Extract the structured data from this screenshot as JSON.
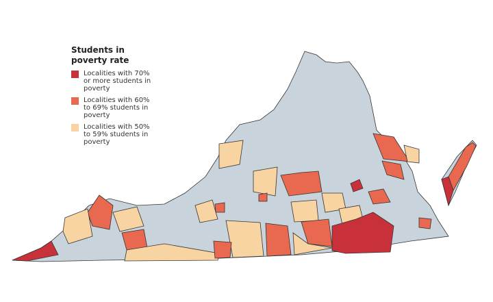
{
  "legend": {
    "title": "Students in poverty rate",
    "items": [
      {
        "label": "Localities with 70% or more students in poverty",
        "color": "#c8313a"
      },
      {
        "label": "Localities with 60% to 69% students in poverty",
        "color": "#e8694f"
      },
      {
        "label": "Localities with 50% to 59% students in poverty",
        "color": "#f8d4a2"
      }
    ]
  }
}
